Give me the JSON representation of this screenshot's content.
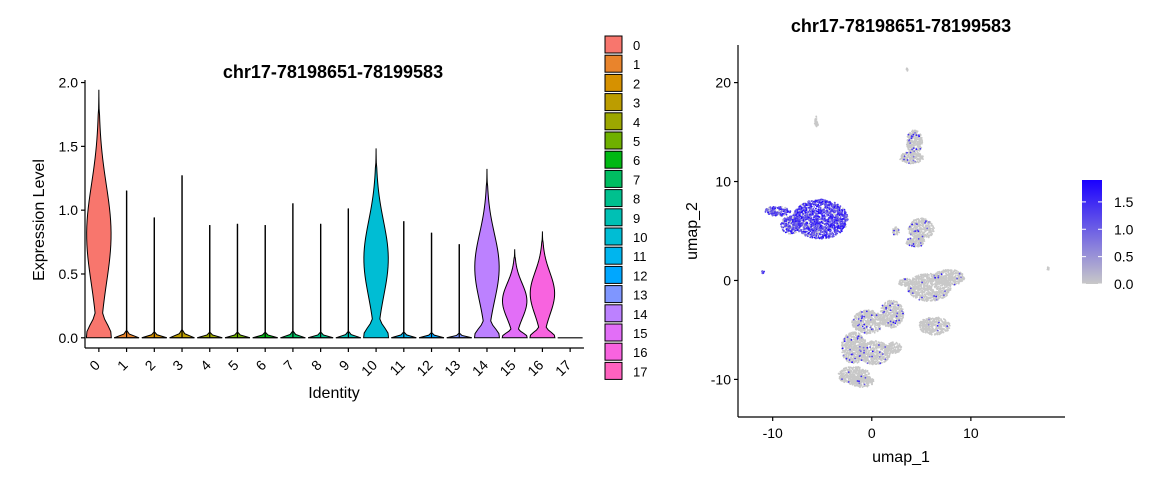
{
  "chart_data": [
    {
      "type": "violin",
      "title": "chr17-78198651-78199583",
      "xlabel": "Identity",
      "ylabel": "Expression Level",
      "ylim": [
        -0.08,
        2.02
      ],
      "yticks": [
        "0.0",
        "0.5",
        "1.0",
        "1.5",
        "2.0"
      ],
      "ytick_values": [
        0,
        0.5,
        1.0,
        1.5,
        2.0
      ],
      "categories": [
        "0",
        "1",
        "2",
        "3",
        "4",
        "5",
        "6",
        "7",
        "8",
        "9",
        "10",
        "11",
        "12",
        "13",
        "14",
        "15",
        "16",
        "17"
      ],
      "max_values": [
        1.94,
        1.15,
        0.94,
        1.27,
        0.88,
        0.89,
        0.88,
        1.05,
        0.89,
        1.01,
        1.48,
        0.91,
        0.82,
        0.73,
        1.32,
        0.69,
        0.83,
        0.0
      ],
      "distribution_kind": [
        "wide",
        "spike",
        "spike",
        "spike",
        "spike",
        "spike",
        "spike",
        "spike",
        "spike",
        "spike",
        "wide",
        "spike",
        "spike",
        "spike",
        "wide",
        "wide",
        "wide",
        "flat"
      ],
      "colors": [
        "#F8766D",
        "#E9842C",
        "#D69100",
        "#BC9D00",
        "#9CA700",
        "#6FB000",
        "#00B813",
        "#00BD61",
        "#00C08E",
        "#00C0B4",
        "#00BDD4",
        "#00B5EE",
        "#00A7FF",
        "#7F96FF",
        "#BC81FF",
        "#E26EF7",
        "#F863DF",
        "#FF62BF"
      ],
      "legend": {
        "position": "right",
        "entries": [
          "0",
          "1",
          "2",
          "3",
          "4",
          "5",
          "6",
          "7",
          "8",
          "9",
          "10",
          "11",
          "12",
          "13",
          "14",
          "15",
          "16",
          "17"
        ]
      }
    },
    {
      "type": "scatter",
      "title": "chr17-78198651-78199583",
      "xlabel": "umap_1",
      "ylabel": "umap_2",
      "xlim": [
        -13.5,
        19.5
      ],
      "ylim": [
        -13.8,
        23.8
      ],
      "xticks": [
        "-10",
        "0",
        "10"
      ],
      "xtick_values": [
        -10,
        0,
        10
      ],
      "yticks": [
        "-10",
        "0",
        "10",
        "20"
      ],
      "ytick_values": [
        -10,
        0,
        10,
        20
      ],
      "point_color_low": "#C8C8C8",
      "point_color_high": "#1A00FF",
      "colorbar": {
        "position": "right",
        "labels": [
          "1.5",
          "1.0",
          "0.5",
          "0.0"
        ],
        "label_values": [
          1.5,
          1.0,
          0.5,
          0.0
        ],
        "range": [
          0,
          1.9
        ]
      },
      "clusters": [
        {
          "cx": -5.2,
          "cy": 6.2,
          "rx": 2.8,
          "ry": 2.0,
          "expressed_fraction": 0.75
        },
        {
          "cx": -9.5,
          "cy": 7.0,
          "rx": 1.3,
          "ry": 0.5,
          "expressed_fraction": 0.6
        },
        {
          "cx": -8.2,
          "cy": 5.6,
          "rx": 1.0,
          "ry": 0.9,
          "expressed_fraction": 0.6
        },
        {
          "cx": -5.6,
          "cy": 16.0,
          "rx": 0.2,
          "ry": 0.6,
          "expressed_fraction": 0.0
        },
        {
          "cx": 4.3,
          "cy": 14.0,
          "rx": 0.8,
          "ry": 1.2,
          "expressed_fraction": 0.05
        },
        {
          "cx": 4.0,
          "cy": 12.4,
          "rx": 1.2,
          "ry": 0.6,
          "expressed_fraction": 0.05
        },
        {
          "cx": 3.6,
          "cy": 21.3,
          "rx": 0.15,
          "ry": 0.2,
          "expressed_fraction": 0.0
        },
        {
          "cx": 5.0,
          "cy": 5.2,
          "rx": 1.3,
          "ry": 1.1,
          "expressed_fraction": 0.03
        },
        {
          "cx": 4.4,
          "cy": 3.9,
          "rx": 1.0,
          "ry": 0.5,
          "expressed_fraction": 0.03
        },
        {
          "cx": 2.4,
          "cy": 5.0,
          "rx": 0.4,
          "ry": 0.4,
          "expressed_fraction": 0.1
        },
        {
          "cx": 7.8,
          "cy": 0.3,
          "rx": 1.6,
          "ry": 0.8,
          "expressed_fraction": 0.02
        },
        {
          "cx": 5.8,
          "cy": -0.7,
          "rx": 2.2,
          "ry": 1.4,
          "expressed_fraction": 0.02
        },
        {
          "cx": 3.4,
          "cy": -0.2,
          "rx": 0.7,
          "ry": 0.4,
          "expressed_fraction": 0.03
        },
        {
          "cx": 6.3,
          "cy": -4.6,
          "rx": 1.6,
          "ry": 0.9,
          "expressed_fraction": 0.02
        },
        {
          "cx": 2.0,
          "cy": -3.4,
          "rx": 1.2,
          "ry": 1.4,
          "expressed_fraction": 0.03
        },
        {
          "cx": -0.4,
          "cy": -4.2,
          "rx": 1.6,
          "ry": 1.2,
          "expressed_fraction": 0.05
        },
        {
          "cx": -1.8,
          "cy": -6.8,
          "rx": 1.3,
          "ry": 1.6,
          "expressed_fraction": 0.03
        },
        {
          "cx": 0.3,
          "cy": -7.3,
          "rx": 1.6,
          "ry": 1.2,
          "expressed_fraction": 0.03
        },
        {
          "cx": 2.2,
          "cy": -6.8,
          "rx": 0.8,
          "ry": 0.6,
          "expressed_fraction": 0.02
        },
        {
          "cx": -1.8,
          "cy": -9.6,
          "rx": 1.6,
          "ry": 0.9,
          "expressed_fraction": 0.02
        },
        {
          "cx": -1.0,
          "cy": -10.2,
          "rx": 1.2,
          "ry": 0.6,
          "expressed_fraction": 0.02
        },
        {
          "cx": -11.0,
          "cy": 0.9,
          "rx": 0.15,
          "ry": 0.2,
          "expressed_fraction": 1.0
        },
        {
          "cx": 17.8,
          "cy": 1.2,
          "rx": 0.1,
          "ry": 0.15,
          "expressed_fraction": 0.0
        }
      ]
    }
  ]
}
